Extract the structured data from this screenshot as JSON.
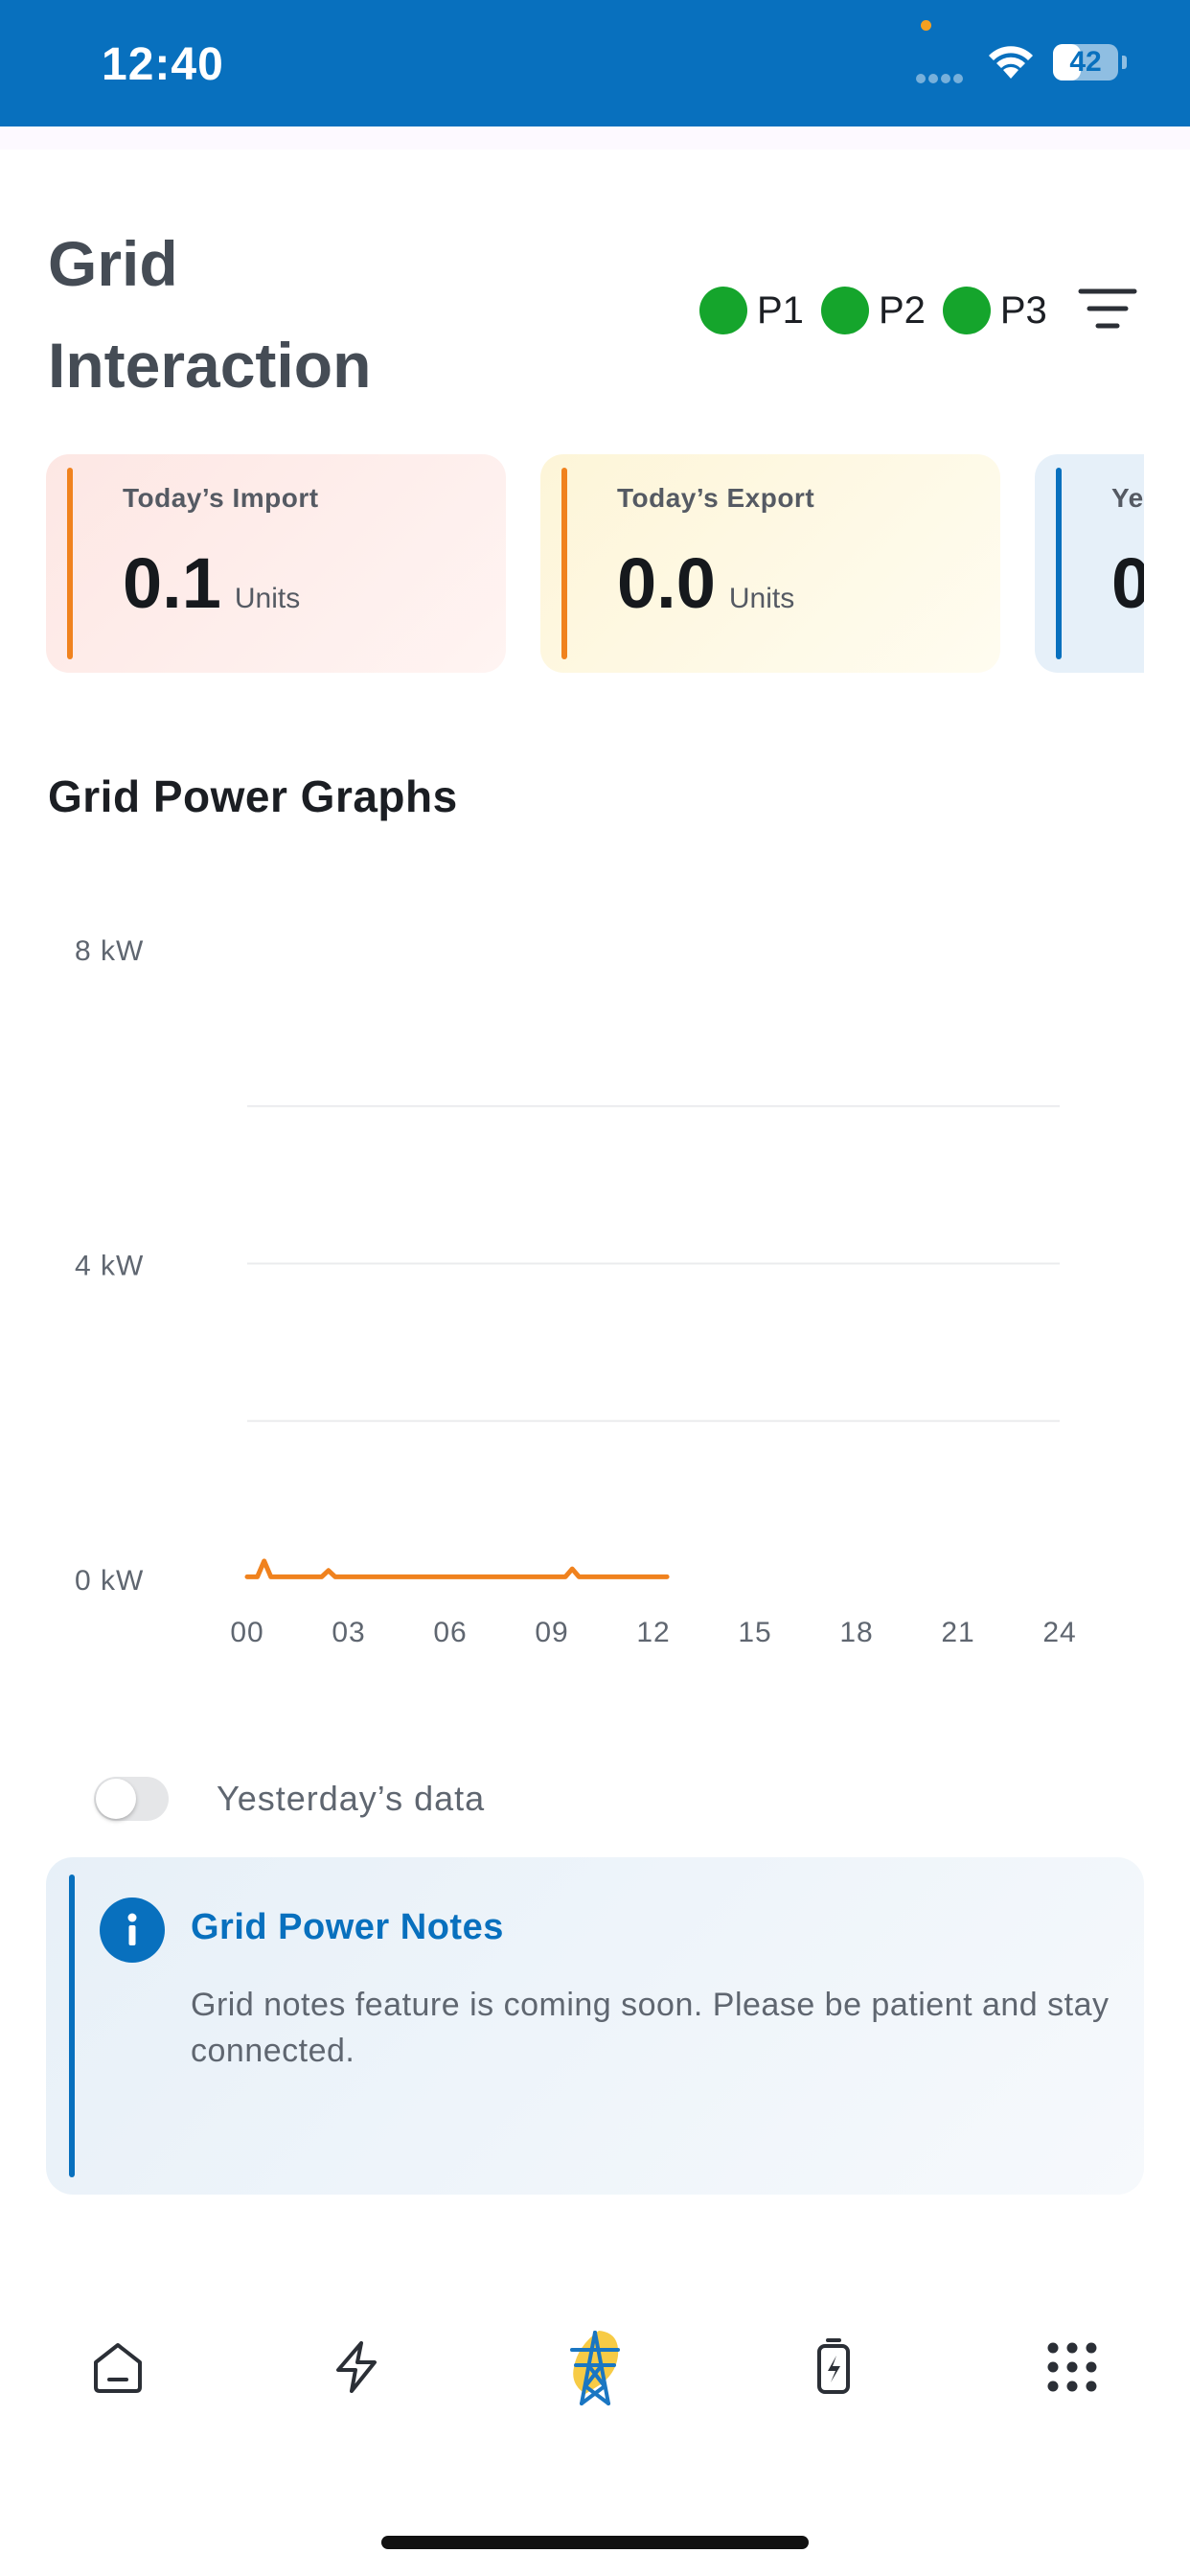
{
  "status_bar": {
    "time": "12:40",
    "battery": "42",
    "battery_level": 0.42,
    "background": "#0870be"
  },
  "header": {
    "title": "Grid Interaction",
    "phases": [
      {
        "label": "P1",
        "color": "#15a52c"
      },
      {
        "label": "P2",
        "color": "#15a52c"
      },
      {
        "label": "P3",
        "color": "#15a52c"
      }
    ],
    "filter_icon": "filter-icon"
  },
  "cards": {
    "import": {
      "label": "Today’s Import",
      "value": "0.1",
      "unit": "Units"
    },
    "export": {
      "label": "Today’s Export",
      "value": "0.0",
      "unit": "Units"
    },
    "yesterday": {
      "label": "Ye",
      "value": "0"
    }
  },
  "graph": {
    "title": "Grid Power Graphs"
  },
  "chart_data": {
    "type": "line",
    "title": "",
    "xlabel": "",
    "ylabel": "",
    "y_ticks": [
      "8 kW",
      "4 kW",
      "0 kW"
    ],
    "x_ticks": [
      "00",
      "03",
      "06",
      "09",
      "12",
      "15",
      "18",
      "21",
      "24"
    ],
    "xlim": [
      0,
      24
    ],
    "ylim": [
      0,
      8
    ],
    "grid": true,
    "series": [
      {
        "color": "#f0821e",
        "x": [
          0,
          0.3,
          0.5,
          0.7,
          2.2,
          2.4,
          2.6,
          6.0,
          9.4,
          9.6,
          9.8,
          12.4
        ],
        "y": [
          0.02,
          0.02,
          0.22,
          0.02,
          0.02,
          0.1,
          0.02,
          0.02,
          0.02,
          0.12,
          0.02,
          0.02
        ]
      }
    ]
  },
  "toggle": {
    "label": "Yesterday’s data",
    "on": false
  },
  "notes": {
    "title": "Grid Power Notes",
    "body": "Grid notes feature is coming soon. Please be patient and stay connected."
  },
  "bottom_nav": {
    "items": [
      {
        "icon": "home-icon"
      },
      {
        "icon": "lightning-icon"
      },
      {
        "icon": "transmission-tower-icon",
        "active": true
      },
      {
        "icon": "battery-charging-icon"
      },
      {
        "icon": "grid-menu-icon"
      }
    ]
  }
}
